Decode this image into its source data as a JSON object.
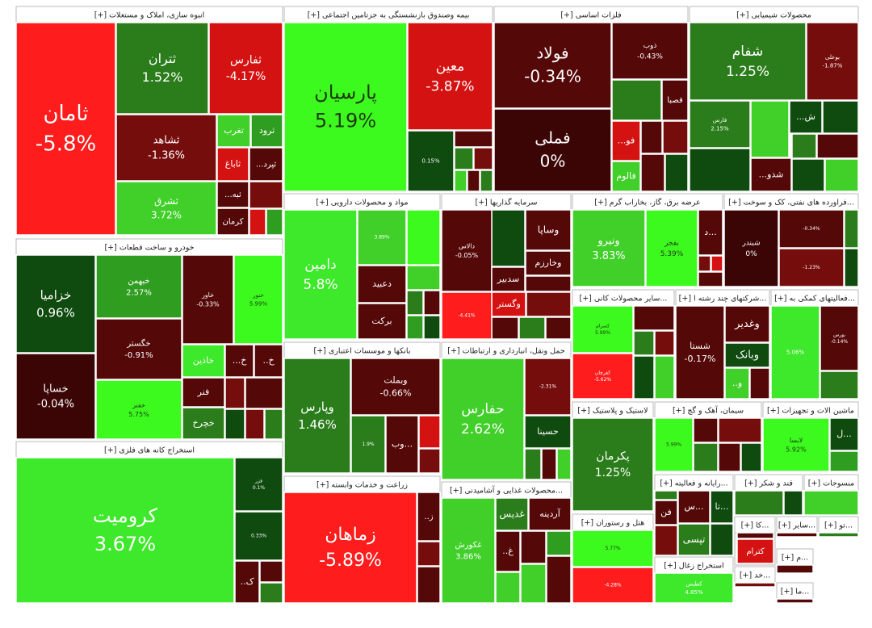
{
  "sectors": [
    {
      "title": "انبوه سازی، املاک و مستغلات [+]",
      "tiles": [
        {
          "name": "ثامان",
          "change": "-5.8%"
        },
        {
          "name": "ثتران",
          "change": "1.52%"
        },
        {
          "name": "ثفارس",
          "change": "-4.17%"
        },
        {
          "name": "ثشاهد",
          "change": "-1.36%"
        },
        {
          "name": "ثشرق",
          "change": "3.72%"
        },
        {
          "name": "تغرب"
        },
        {
          "name": "ثرود"
        },
        {
          "name": "ثاباغ"
        },
        {
          "name": "ثپرد..."
        },
        {
          "name": "ثبه..."
        },
        {
          "name": "کرمان"
        }
      ]
    },
    {
      "title": "بیمه وصندوق بازنشستگی به جزتامین اجتماعی [+]",
      "tiles": [
        {
          "name": "پارسیان",
          "change": "5.19%"
        },
        {
          "name": "معین",
          "change": "-3.87%"
        },
        {
          "change": "0.15%"
        }
      ]
    },
    {
      "title": "فلزات اساسی [+]",
      "tiles": [
        {
          "name": "فولاد",
          "change": "-0.34%"
        },
        {
          "name": "فملی",
          "change": "0%"
        },
        {
          "name": "ذوب",
          "change": "-0.43%"
        },
        {
          "name": "فصبا"
        },
        {
          "name": "فو..."
        },
        {
          "name": "فالوم"
        }
      ]
    },
    {
      "title": "محصولات شیمیایی [+]",
      "tiles": [
        {
          "name": "شفام",
          "change": "1.25%"
        },
        {
          "name": "بوعلی",
          "change": "-1.87%"
        },
        {
          "name": "فارس",
          "change": "2.15%"
        },
        {
          "name": "ش..."
        },
        {
          "name": "شدو..."
        }
      ]
    },
    {
      "title": "مواد و محصولات دارویی [+]",
      "tiles": [
        {
          "name": "دامین",
          "change": "5.8%"
        },
        {
          "change": "3.89%"
        },
        {
          "name": "دعبید"
        },
        {
          "name": "برکت"
        }
      ]
    },
    {
      "title": "سرمایه گذاریها [+]",
      "tiles": [
        {
          "name": "دالاس",
          "change": "-0.05%"
        },
        {
          "name": "وساپا"
        },
        {
          "name": "وخارزم"
        },
        {
          "name": "سدبیر"
        },
        {
          "name": "وگستر"
        },
        {
          "change": "-4.41%"
        }
      ]
    },
    {
      "title": "عرضه برق، گاز، بخاراب گرم [+]",
      "tiles": [
        {
          "name": "ونیرو",
          "change": "3.83%"
        },
        {
          "name": "بفجر",
          "change": "5.39%"
        },
        {
          "name": "...د"
        }
      ]
    },
    {
      "title": "...فراورده های نفتی، کک و سوخت [+]",
      "tiles": [
        {
          "name": "شبندر",
          "change": "0%"
        },
        {
          "change": "-0.34%"
        },
        {
          "change": "-1.23%"
        }
      ]
    },
    {
      "title": "خودرو و ساخت قطعات [+]",
      "tiles": [
        {
          "name": "خزامیا",
          "change": "0.96%"
        },
        {
          "name": "خساپا",
          "change": "-0.04%"
        },
        {
          "name": "خبهمن",
          "change": "2.57%"
        },
        {
          "name": "خگستر",
          "change": "-0.91%"
        },
        {
          "name": "خفنر",
          "change": "5.75%"
        },
        {
          "name": "خاور",
          "change": "-0.33%"
        },
        {
          "name": "ختور",
          "change": "5.99%"
        },
        {
          "name": "خاذین"
        },
        {
          "name": "فنر"
        },
        {
          "name": "خچرخ"
        },
        {
          "name": "خ..."
        },
        {
          "name": "خ.."
        }
      ]
    },
    {
      "title": "استخراج کانه های فلزی [+]",
      "tiles": [
        {
          "name": "کرومیت",
          "change": "3.67%"
        },
        {
          "name": "فزر",
          "change": "0.1%"
        },
        {
          "change": "0.33%"
        },
        {
          "name": "ک.."
        }
      ]
    },
    {
      "title": "بانکها و موسسات اعتباری [+]",
      "tiles": [
        {
          "name": "وپارس",
          "change": "1.46%"
        },
        {
          "name": "وبملت",
          "change": "-0.66%"
        },
        {
          "name": "...وب"
        },
        {
          "change": "1.9%"
        }
      ]
    },
    {
      "title": "حمل ونقل، انبارداری و ارتباطات [+]",
      "tiles": [
        {
          "name": "حفارس",
          "change": "2.62%"
        },
        {
          "change": "-2.31%"
        },
        {
          "name": "حسینا"
        }
      ]
    },
    {
      "title": "زراعت و خدمات وابسته [+]",
      "tiles": [
        {
          "name": "زماهان",
          "change": "-5.89%"
        },
        {
          "name": "ز.."
        }
      ]
    },
    {
      "title": "...محصولات غذایی و آشامیدنی [+]",
      "tiles": [
        {
          "name": "غکورش",
          "change": "3.86%"
        },
        {
          "name": "غدیس"
        },
        {
          "name": "آردینه"
        },
        {
          "name": "غ.."
        }
      ]
    },
    {
      "title": "...سایر محصولات کانی [+]",
      "tiles": [
        {
          "name": "کسرام",
          "change": "5.99%"
        },
        {
          "name": "کفرچان",
          "change": "-5.62%"
        }
      ]
    },
    {
      "title": "...شرکتهای چند رشته ا [+]",
      "tiles": [
        {
          "name": "شستا",
          "change": "-0.17%"
        },
        {
          "name": "وغدیر"
        },
        {
          "name": "وبانک"
        },
        {
          "name": "و.."
        }
      ]
    },
    {
      "title": "...فعالیتهای کمکی به [+]",
      "tiles": [
        {
          "change": "5.06%"
        },
        {
          "name": "بورس",
          "change": "-0.14%"
        }
      ]
    },
    {
      "title": "لاستیک و پلاستیک [+]",
      "tiles": [
        {
          "name": "پکرمان",
          "change": "1.25%"
        }
      ]
    },
    {
      "title": "سیمان، آهک و گچ [+]",
      "tiles": [
        {
          "change": "5.99%"
        }
      ]
    },
    {
      "title": "ماشین الات و تجهیزات [+]",
      "tiles": [
        {
          "name": "لابسا",
          "change": "5.92%"
        },
        {
          "name": "...ل"
        }
      ]
    },
    {
      "title": "هتل و رستوران [+]",
      "tiles": [
        {
          "change": "5.77%"
        },
        {
          "change": "-4.28%"
        }
      ]
    },
    {
      "title": "...رایانه و فعالیته [+]",
      "tiles": [
        {
          "name": "...تا"
        },
        {
          "name": "فن"
        },
        {
          "name": "...س"
        },
        {
          "name": "تپسی"
        }
      ]
    },
    {
      "title": "قند و شکر [+]",
      "tiles": []
    },
    {
      "title": "منسوجات [+]",
      "tiles": []
    },
    {
      "title": "استخراج زغال [+]",
      "tiles": [
        {
          "name": "کطبس",
          "change": "4.85%"
        }
      ]
    },
    {
      "title": "...کا [+]",
      "tiles": [
        {
          "name": "کترام"
        }
      ]
    },
    {
      "title": "...سایر [+]",
      "tiles": []
    },
    {
      "title": "...تو [+]",
      "tiles": []
    },
    {
      "title": "...خد [+]",
      "tiles": []
    },
    {
      "title": "...م [+]",
      "tiles": []
    },
    {
      "title": "...ما [+]",
      "tiles": []
    }
  ]
}
